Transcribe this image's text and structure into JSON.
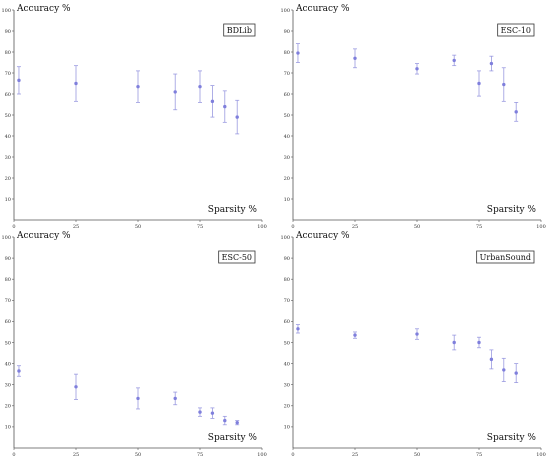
{
  "chart_data": [
    {
      "type": "scatter",
      "title": "BDLib",
      "xlabel": "Sparsity %",
      "ylabel": "Accuracy %",
      "xlim": [
        0,
        100
      ],
      "ylim": [
        0,
        100
      ],
      "xticks": [
        "0",
        "25",
        "50",
        "75",
        "100"
      ],
      "yticks": [
        "10",
        "20",
        "30",
        "40",
        "50",
        "60",
        "70",
        "80",
        "90",
        "100"
      ],
      "legend_position": "top-right",
      "error_bars": true,
      "points": [
        {
          "x": 2,
          "y": 66.5,
          "err": 6.5
        },
        {
          "x": 25,
          "y": 65,
          "err": 8.5
        },
        {
          "x": 50,
          "y": 63.5,
          "err": 7.5
        },
        {
          "x": 65,
          "y": 61,
          "err": 8.5
        },
        {
          "x": 75,
          "y": 63.5,
          "err": 7.5
        },
        {
          "x": 80,
          "y": 56.5,
          "err": 7.5
        },
        {
          "x": 85,
          "y": 54,
          "err": 7.5
        },
        {
          "x": 90,
          "y": 49,
          "err": 8
        }
      ]
    },
    {
      "type": "scatter",
      "title": "ESC-10",
      "xlabel": "Sparsity %",
      "ylabel": "Accuracy %",
      "xlim": [
        0,
        100
      ],
      "ylim": [
        0,
        100
      ],
      "xticks": [
        "0",
        "25",
        "50",
        "75",
        "100"
      ],
      "yticks": [
        "10",
        "20",
        "30",
        "40",
        "50",
        "60",
        "70",
        "80",
        "90",
        "100"
      ],
      "legend_position": "top-right",
      "error_bars": true,
      "points": [
        {
          "x": 2,
          "y": 79.5,
          "err": 4.5
        },
        {
          "x": 25,
          "y": 77,
          "err": 4.5
        },
        {
          "x": 50,
          "y": 72,
          "err": 2.5
        },
        {
          "x": 65,
          "y": 76,
          "err": 2.5
        },
        {
          "x": 75,
          "y": 65,
          "err": 6
        },
        {
          "x": 80,
          "y": 74.5,
          "err": 3.5
        },
        {
          "x": 85,
          "y": 64.5,
          "err": 8
        },
        {
          "x": 90,
          "y": 51.5,
          "err": 4.5
        }
      ]
    },
    {
      "type": "scatter",
      "title": "ESC-50",
      "xlabel": "Sparsity %",
      "ylabel": "Accuracy %",
      "xlim": [
        0,
        100
      ],
      "ylim": [
        0,
        100
      ],
      "xticks": [
        "0",
        "25",
        "50",
        "75",
        "100"
      ],
      "yticks": [
        "10",
        "20",
        "30",
        "40",
        "50",
        "60",
        "70",
        "80",
        "90",
        "100"
      ],
      "legend_position": "top-right",
      "error_bars": true,
      "points": [
        {
          "x": 2,
          "y": 36.5,
          "err": 2.5
        },
        {
          "x": 25,
          "y": 29,
          "err": 6
        },
        {
          "x": 50,
          "y": 23.5,
          "err": 5
        },
        {
          "x": 65,
          "y": 23.5,
          "err": 3
        },
        {
          "x": 75,
          "y": 17,
          "err": 2
        },
        {
          "x": 80,
          "y": 16.5,
          "err": 2.5
        },
        {
          "x": 85,
          "y": 13,
          "err": 2
        },
        {
          "x": 90,
          "y": 12,
          "err": 1
        }
      ]
    },
    {
      "type": "scatter",
      "title": "UrbanSound",
      "xlabel": "Sparsity %",
      "ylabel": "Accuracy %",
      "xlim": [
        0,
        100
      ],
      "ylim": [
        0,
        100
      ],
      "xticks": [
        "0",
        "25",
        "50",
        "75",
        "100"
      ],
      "yticks": [
        "10",
        "20",
        "30",
        "40",
        "50",
        "60",
        "70",
        "80",
        "90",
        "100"
      ],
      "legend_position": "top-right",
      "error_bars": true,
      "points": [
        {
          "x": 2,
          "y": 56.5,
          "err": 2
        },
        {
          "x": 25,
          "y": 53.5,
          "err": 1.5
        },
        {
          "x": 50,
          "y": 54,
          "err": 2.5
        },
        {
          "x": 65,
          "y": 50,
          "err": 3.5
        },
        {
          "x": 75,
          "y": 50,
          "err": 2.5
        },
        {
          "x": 80,
          "y": 42,
          "err": 4.5
        },
        {
          "x": 85,
          "y": 37,
          "err": 5.5
        },
        {
          "x": 90,
          "y": 35.5,
          "err": 4.5
        }
      ]
    }
  ],
  "style": {
    "marker_color": "#7f7fdc",
    "errorbar_color": "#9a9ae0",
    "axis_color": "#555555",
    "label_box_border": "#333333"
  }
}
